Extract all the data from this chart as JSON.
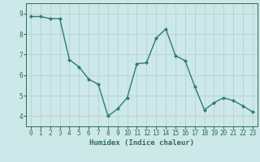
{
  "x": [
    0,
    1,
    2,
    3,
    4,
    5,
    6,
    7,
    8,
    9,
    10,
    11,
    12,
    13,
    14,
    15,
    16,
    17,
    18,
    19,
    20,
    21,
    22,
    23
  ],
  "y": [
    8.85,
    8.85,
    8.75,
    8.75,
    6.75,
    6.4,
    5.8,
    5.55,
    4.0,
    4.35,
    4.9,
    6.55,
    6.6,
    7.8,
    8.25,
    6.95,
    6.7,
    5.45,
    4.3,
    4.65,
    4.9,
    4.75,
    4.5,
    4.2
  ],
  "line_color": "#2e7d6e",
  "marker": "D",
  "markersize": 2.2,
  "linewidth": 1.0,
  "bg_color": "#cce8e8",
  "grid_color": "#b8d4d4",
  "xlabel": "Humidex (Indice chaleur)",
  "ylim": [
    3.5,
    9.5
  ],
  "xlim": [
    -0.5,
    23.5
  ],
  "yticks": [
    4,
    5,
    6,
    7,
    8,
    9
  ],
  "xticks": [
    0,
    1,
    2,
    3,
    4,
    5,
    6,
    7,
    8,
    9,
    10,
    11,
    12,
    13,
    14,
    15,
    16,
    17,
    18,
    19,
    20,
    21,
    22,
    23
  ],
  "tick_color": "#2e6b5e",
  "label_fontsize": 5.5,
  "xlabel_fontsize": 6.5
}
